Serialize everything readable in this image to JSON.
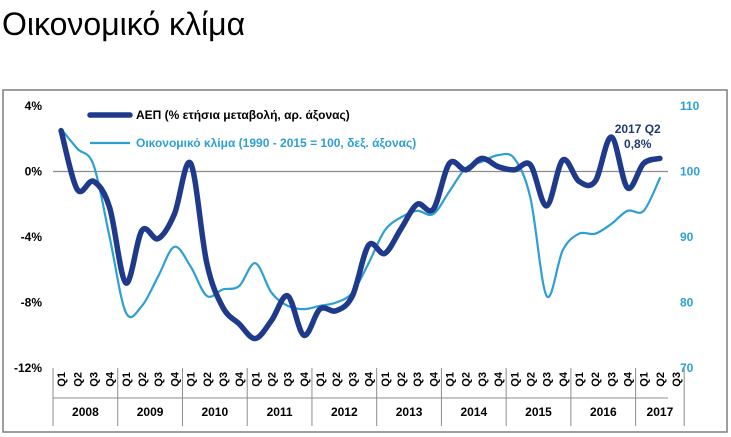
{
  "page": {
    "title": "Οικονομικό κλίμα"
  },
  "chart_data": {
    "type": "line",
    "title": "Οικονομικό κλίμα",
    "quarter_labels": [
      "Q1",
      "Q2",
      "Q3",
      "Q4"
    ],
    "years": [
      {
        "label": "2008",
        "quarters": [
          "Q1",
          "Q2",
          "Q3",
          "Q4"
        ]
      },
      {
        "label": "2009",
        "quarters": [
          "Q1",
          "Q2",
          "Q3",
          "Q4"
        ]
      },
      {
        "label": "2010",
        "quarters": [
          "Q1",
          "Q2",
          "Q3",
          "Q4"
        ]
      },
      {
        "label": "2011",
        "quarters": [
          "Q1",
          "Q2",
          "Q3",
          "Q4"
        ]
      },
      {
        "label": "2012",
        "quarters": [
          "Q1",
          "Q2",
          "Q3",
          "Q4"
        ]
      },
      {
        "label": "2013",
        "quarters": [
          "Q1",
          "Q2",
          "Q3",
          "Q4"
        ]
      },
      {
        "label": "2014",
        "quarters": [
          "Q1",
          "Q2",
          "Q3",
          "Q4"
        ]
      },
      {
        "label": "2015",
        "quarters": [
          "Q1",
          "Q2",
          "Q3",
          "Q4"
        ]
      },
      {
        "label": "2016",
        "quarters": [
          "Q1",
          "Q2",
          "Q3",
          "Q4"
        ]
      },
      {
        "label": "2017",
        "quarters": [
          "Q1",
          "Q2",
          "Q3"
        ]
      }
    ],
    "left_axis": {
      "ticks": [
        "4%",
        "0%",
        "-4%",
        "-8%",
        "-12%"
      ],
      "values": [
        4,
        0,
        -4,
        -8,
        -12
      ],
      "ylim": [
        -12,
        4
      ]
    },
    "right_axis": {
      "ticks": [
        "110",
        "100",
        "90",
        "80",
        "70"
      ],
      "values": [
        110,
        100,
        90,
        80,
        70
      ],
      "ylim": [
        70,
        110
      ]
    },
    "series": [
      {
        "name": "ΑΕΠ (% ετήσια μεταβολή, αρ. άξονας)",
        "axis": "left",
        "color": "#1f3a8a",
        "values": [
          2.5,
          -1.1,
          -0.6,
          -2.2,
          -6.8,
          -3.6,
          -4.1,
          -2.6,
          0.5,
          -5.6,
          -8.3,
          -9.3,
          -10.2,
          -9.1,
          -7.6,
          -10.0,
          -8.4,
          -8.5,
          -7.6,
          -4.5,
          -5.0,
          -3.5,
          -2.0,
          -2.3,
          0.5,
          0.1,
          0.8,
          0.3,
          0.1,
          0.4,
          -2.1,
          0.7,
          -0.6,
          -0.6,
          2.1,
          -1.0,
          0.5,
          0.8
        ]
      },
      {
        "name": "Οικονομικό κλίμα (1990 - 2015 = 100, δεξ. άξονας)",
        "axis": "right",
        "color": "#2d9fd3",
        "values": [
          106.5,
          103.5,
          101.0,
          90.0,
          78.5,
          79.5,
          84.0,
          88.5,
          85.5,
          81.0,
          82.0,
          82.5,
          86.0,
          81.5,
          79.5,
          79.0,
          79.5,
          80.0,
          81.5,
          86.0,
          91.0,
          93.0,
          94.0,
          93.5,
          97.0,
          100.5,
          101.5,
          102.5,
          102.0,
          96.0,
          81.0,
          88.0,
          90.5,
          90.5,
          92.0,
          94.0,
          94.0,
          99.0
        ]
      }
    ],
    "annotation": {
      "line1": "2017 Q2",
      "line2": "0,8%"
    },
    "grid": false,
    "legend_position": "top-left"
  }
}
